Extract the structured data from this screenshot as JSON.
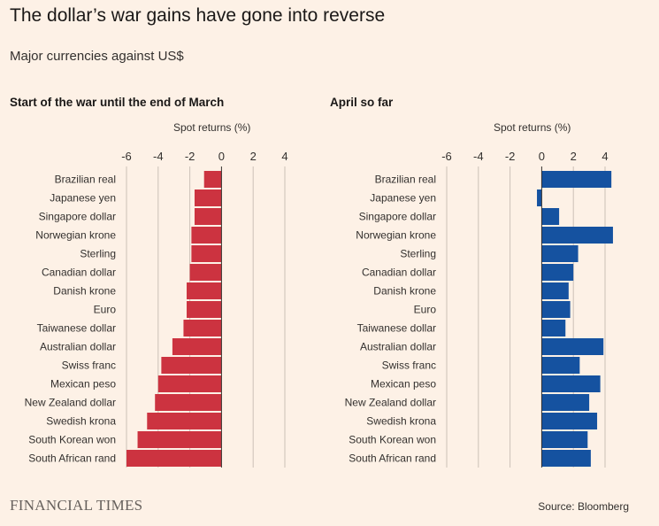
{
  "title": "The dollar’s war gains have gone into reverse",
  "subtitle": "Major currencies against US$",
  "source": "Source: Bloomberg",
  "brand": "FINANCIAL TIMES",
  "colors": {
    "background": "#fdf1e6",
    "left_bars": "#cc3340",
    "right_bars": "#1552a0",
    "grid": "#ccc1b7"
  },
  "chart_data": [
    {
      "type": "bar",
      "orientation": "horizontal",
      "title": "Start of the war until the end of March",
      "xlabel": "Spot returns (%)",
      "xlim": [
        -6,
        4
      ],
      "xticks": [
        -6,
        -4,
        -2,
        0,
        2,
        4
      ],
      "xtick_labels": [
        "-6",
        "-4",
        "-2",
        "0",
        "2",
        "4"
      ],
      "categories": [
        "Brazilian real",
        "Japanese yen",
        "Singapore dollar",
        "Norwegian krone",
        "Sterling",
        "Canadian dollar",
        "Danish krone",
        "Euro",
        "Taiwanese dollar",
        "Australian dollar",
        "Swiss franc",
        "Mexican peso",
        "New Zealand dollar",
        "Swedish krona",
        "South Korean won",
        "South African rand"
      ],
      "values": [
        -1.1,
        -1.7,
        -1.7,
        -1.9,
        -1.9,
        -2.0,
        -2.2,
        -2.2,
        -2.4,
        -3.1,
        -3.8,
        -4.0,
        -4.2,
        -4.7,
        -5.3,
        -6.0
      ]
    },
    {
      "type": "bar",
      "orientation": "horizontal",
      "title": "April so far",
      "xlabel": "Spot returns (%)",
      "xlim": [
        -6,
        4
      ],
      "xticks": [
        -6,
        -4,
        -2,
        0,
        2,
        4
      ],
      "xtick_labels": [
        "-6",
        "-4",
        "-2",
        "0",
        "2",
        "4"
      ],
      "categories": [
        "Brazilian real",
        "Japanese yen",
        "Singapore dollar",
        "Norwegian krone",
        "Sterling",
        "Canadian dollar",
        "Danish krone",
        "Euro",
        "Taiwanese dollar",
        "Australian dollar",
        "Swiss franc",
        "Mexican peso",
        "New Zealand dollar",
        "Swedish krona",
        "South Korean won",
        "South African rand"
      ],
      "values": [
        4.4,
        -0.3,
        1.1,
        4.5,
        2.3,
        2.0,
        1.7,
        1.8,
        1.5,
        3.9,
        2.4,
        3.7,
        3.0,
        3.5,
        2.9,
        3.1
      ]
    }
  ]
}
